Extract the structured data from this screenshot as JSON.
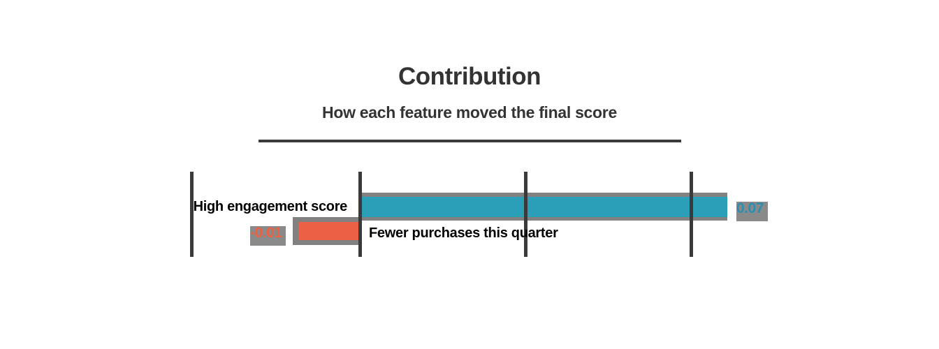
{
  "chart": {
    "title": "Contribution",
    "subtitle": "How each feature moved the final score",
    "bars": [
      {
        "label": "High engagement score",
        "value": "0.07",
        "direction": "positive"
      },
      {
        "label": "Fewer purchases this quarter",
        "value": "-0.01",
        "direction": "negative"
      }
    ],
    "colors": {
      "positive_bar": "#2b9fb8",
      "negative_bar": "#ec6144",
      "bar_border": "#818181",
      "axis_and_divider": "#3a3a3a",
      "heading_text": "#333333",
      "label_text": "#000000",
      "value_chip_background": "#8a8a8a"
    }
  },
  "chart_data": {
    "type": "bar",
    "orientation": "horizontal",
    "title": "Contribution",
    "subtitle": "How each feature moved the final score",
    "categories": [
      "High engagement score",
      "Fewer purchases this quarter"
    ],
    "values": [
      0.07,
      -0.01
    ],
    "value_labels": [
      "0.07",
      "-0.01"
    ],
    "series_colors": [
      "#2b9fb8",
      "#ec6144"
    ],
    "baseline": 0,
    "xlabel": "",
    "ylabel": "",
    "axis": {
      "vertical_gridlines": 4,
      "tick_labels_visible": false,
      "baseline_at_gridline_index": 1
    },
    "legend_position": "none",
    "grid": "vertical-only"
  }
}
